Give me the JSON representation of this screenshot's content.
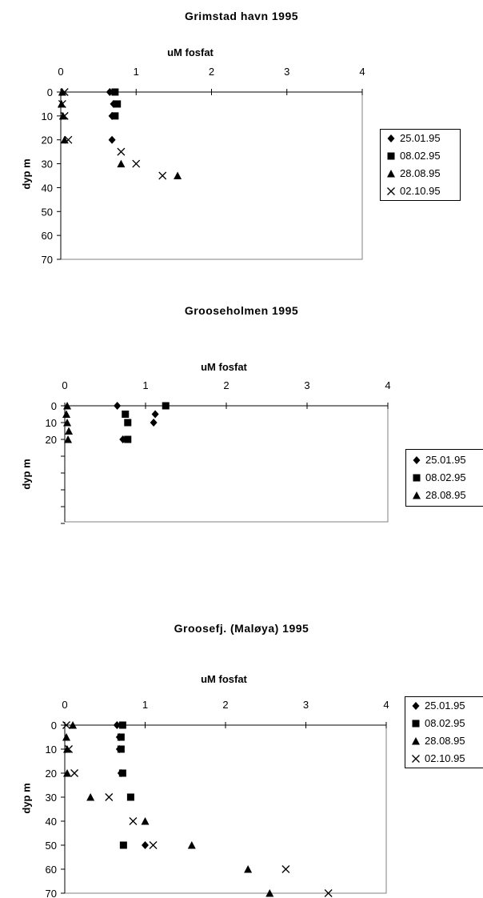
{
  "charts": [
    {
      "chart_data": {
        "type": "scatter",
        "title": "Grimstad havn 1995",
        "xlabel": "uM fosfat",
        "ylabel": "dyp m",
        "xlim": [
          0,
          4
        ],
        "ylim": [
          0,
          70
        ],
        "x_ticks": [
          "0",
          "1",
          "2",
          "3",
          "4"
        ],
        "y_ticks": [
          "0",
          "10",
          "20",
          "30",
          "40",
          "50",
          "60",
          "70"
        ],
        "legend_position": "right",
        "series": [
          {
            "name": "25.01.95",
            "marker": "diamond",
            "points": [
              [
                0.65,
                0
              ],
              [
                0.7,
                5
              ],
              [
                0.68,
                10
              ],
              [
                0.68,
                20
              ]
            ]
          },
          {
            "name": "08.02.95",
            "marker": "square",
            "points": [
              [
                0.72,
                0
              ],
              [
                0.75,
                5
              ],
              [
                0.72,
                10
              ]
            ]
          },
          {
            "name": "28.08.95",
            "marker": "triangle",
            "points": [
              [
                0.02,
                0
              ],
              [
                0.01,
                5
              ],
              [
                0.03,
                10
              ],
              [
                0.05,
                20
              ],
              [
                0.8,
                30
              ],
              [
                1.55,
                35
              ]
            ]
          },
          {
            "name": "02.10.95",
            "marker": "x",
            "points": [
              [
                0.05,
                0
              ],
              [
                0.02,
                5
              ],
              [
                0.05,
                10
              ],
              [
                0.1,
                20
              ],
              [
                0.8,
                25
              ],
              [
                1.0,
                30
              ],
              [
                1.35,
                35
              ]
            ]
          }
        ]
      }
    },
    {
      "chart_data": {
        "type": "scatter",
        "title": "Grooseholmen 1995",
        "xlabel": "uM fosfat",
        "ylabel": "dyp m",
        "xlim": [
          0,
          4
        ],
        "ylim": [
          0,
          70
        ],
        "x_ticks": [
          "0",
          "1",
          "2",
          "3",
          "4"
        ],
        "y_ticks": [
          "0",
          "10",
          "20",
          "",
          "",
          "",
          "",
          ""
        ],
        "legend_position": "right",
        "series": [
          {
            "name": "25.01.95",
            "marker": "diamond",
            "points": [
              [
                0.65,
                0
              ],
              [
                1.12,
                5
              ],
              [
                1.1,
                10
              ],
              [
                0.72,
                20
              ]
            ]
          },
          {
            "name": "08.02.95",
            "marker": "square",
            "points": [
              [
                1.25,
                0
              ],
              [
                0.75,
                5
              ],
              [
                0.78,
                10
              ],
              [
                0.78,
                20
              ]
            ]
          },
          {
            "name": "28.08.95",
            "marker": "triangle",
            "points": [
              [
                0.03,
                0
              ],
              [
                0.02,
                5
              ],
              [
                0.03,
                10
              ],
              [
                0.05,
                15
              ],
              [
                0.04,
                20
              ]
            ]
          }
        ]
      }
    },
    {
      "chart_data": {
        "type": "scatter",
        "title": "Groosefj. (Maløya) 1995",
        "xlabel": "uM fosfat",
        "ylabel": "dyp m",
        "xlim": [
          0,
          4
        ],
        "ylim": [
          0,
          70
        ],
        "x_ticks": [
          "0",
          "1",
          "2",
          "3",
          "4"
        ],
        "y_ticks": [
          "0",
          "10",
          "20",
          "30",
          "40",
          "50",
          "60",
          "70"
        ],
        "legend_position": "right",
        "series": [
          {
            "name": "25.01.95",
            "marker": "diamond",
            "points": [
              [
                0.65,
                0
              ],
              [
                0.68,
                5
              ],
              [
                0.68,
                10
              ],
              [
                0.7,
                20
              ],
              [
                1.0,
                50
              ]
            ]
          },
          {
            "name": "08.02.95",
            "marker": "square",
            "points": [
              [
                0.72,
                0
              ],
              [
                0.7,
                5
              ],
              [
                0.7,
                10
              ],
              [
                0.72,
                20
              ],
              [
                0.82,
                30
              ],
              [
                0.73,
                50
              ]
            ]
          },
          {
            "name": "28.08.95",
            "marker": "triangle",
            "points": [
              [
                0.1,
                0
              ],
              [
                0.02,
                5
              ],
              [
                0.03,
                10
              ],
              [
                0.03,
                20
              ],
              [
                0.32,
                30
              ],
              [
                1.0,
                40
              ],
              [
                1.58,
                50
              ],
              [
                2.28,
                60
              ],
              [
                2.55,
                70
              ]
            ]
          },
          {
            "name": "02.10.95",
            "marker": "x",
            "points": [
              [
                0.02,
                0
              ],
              [
                0.05,
                10
              ],
              [
                0.12,
                20
              ],
              [
                0.55,
                30
              ],
              [
                0.85,
                40
              ],
              [
                1.1,
                50
              ],
              [
                2.75,
                60
              ],
              [
                3.28,
                70
              ]
            ]
          }
        ]
      }
    }
  ]
}
